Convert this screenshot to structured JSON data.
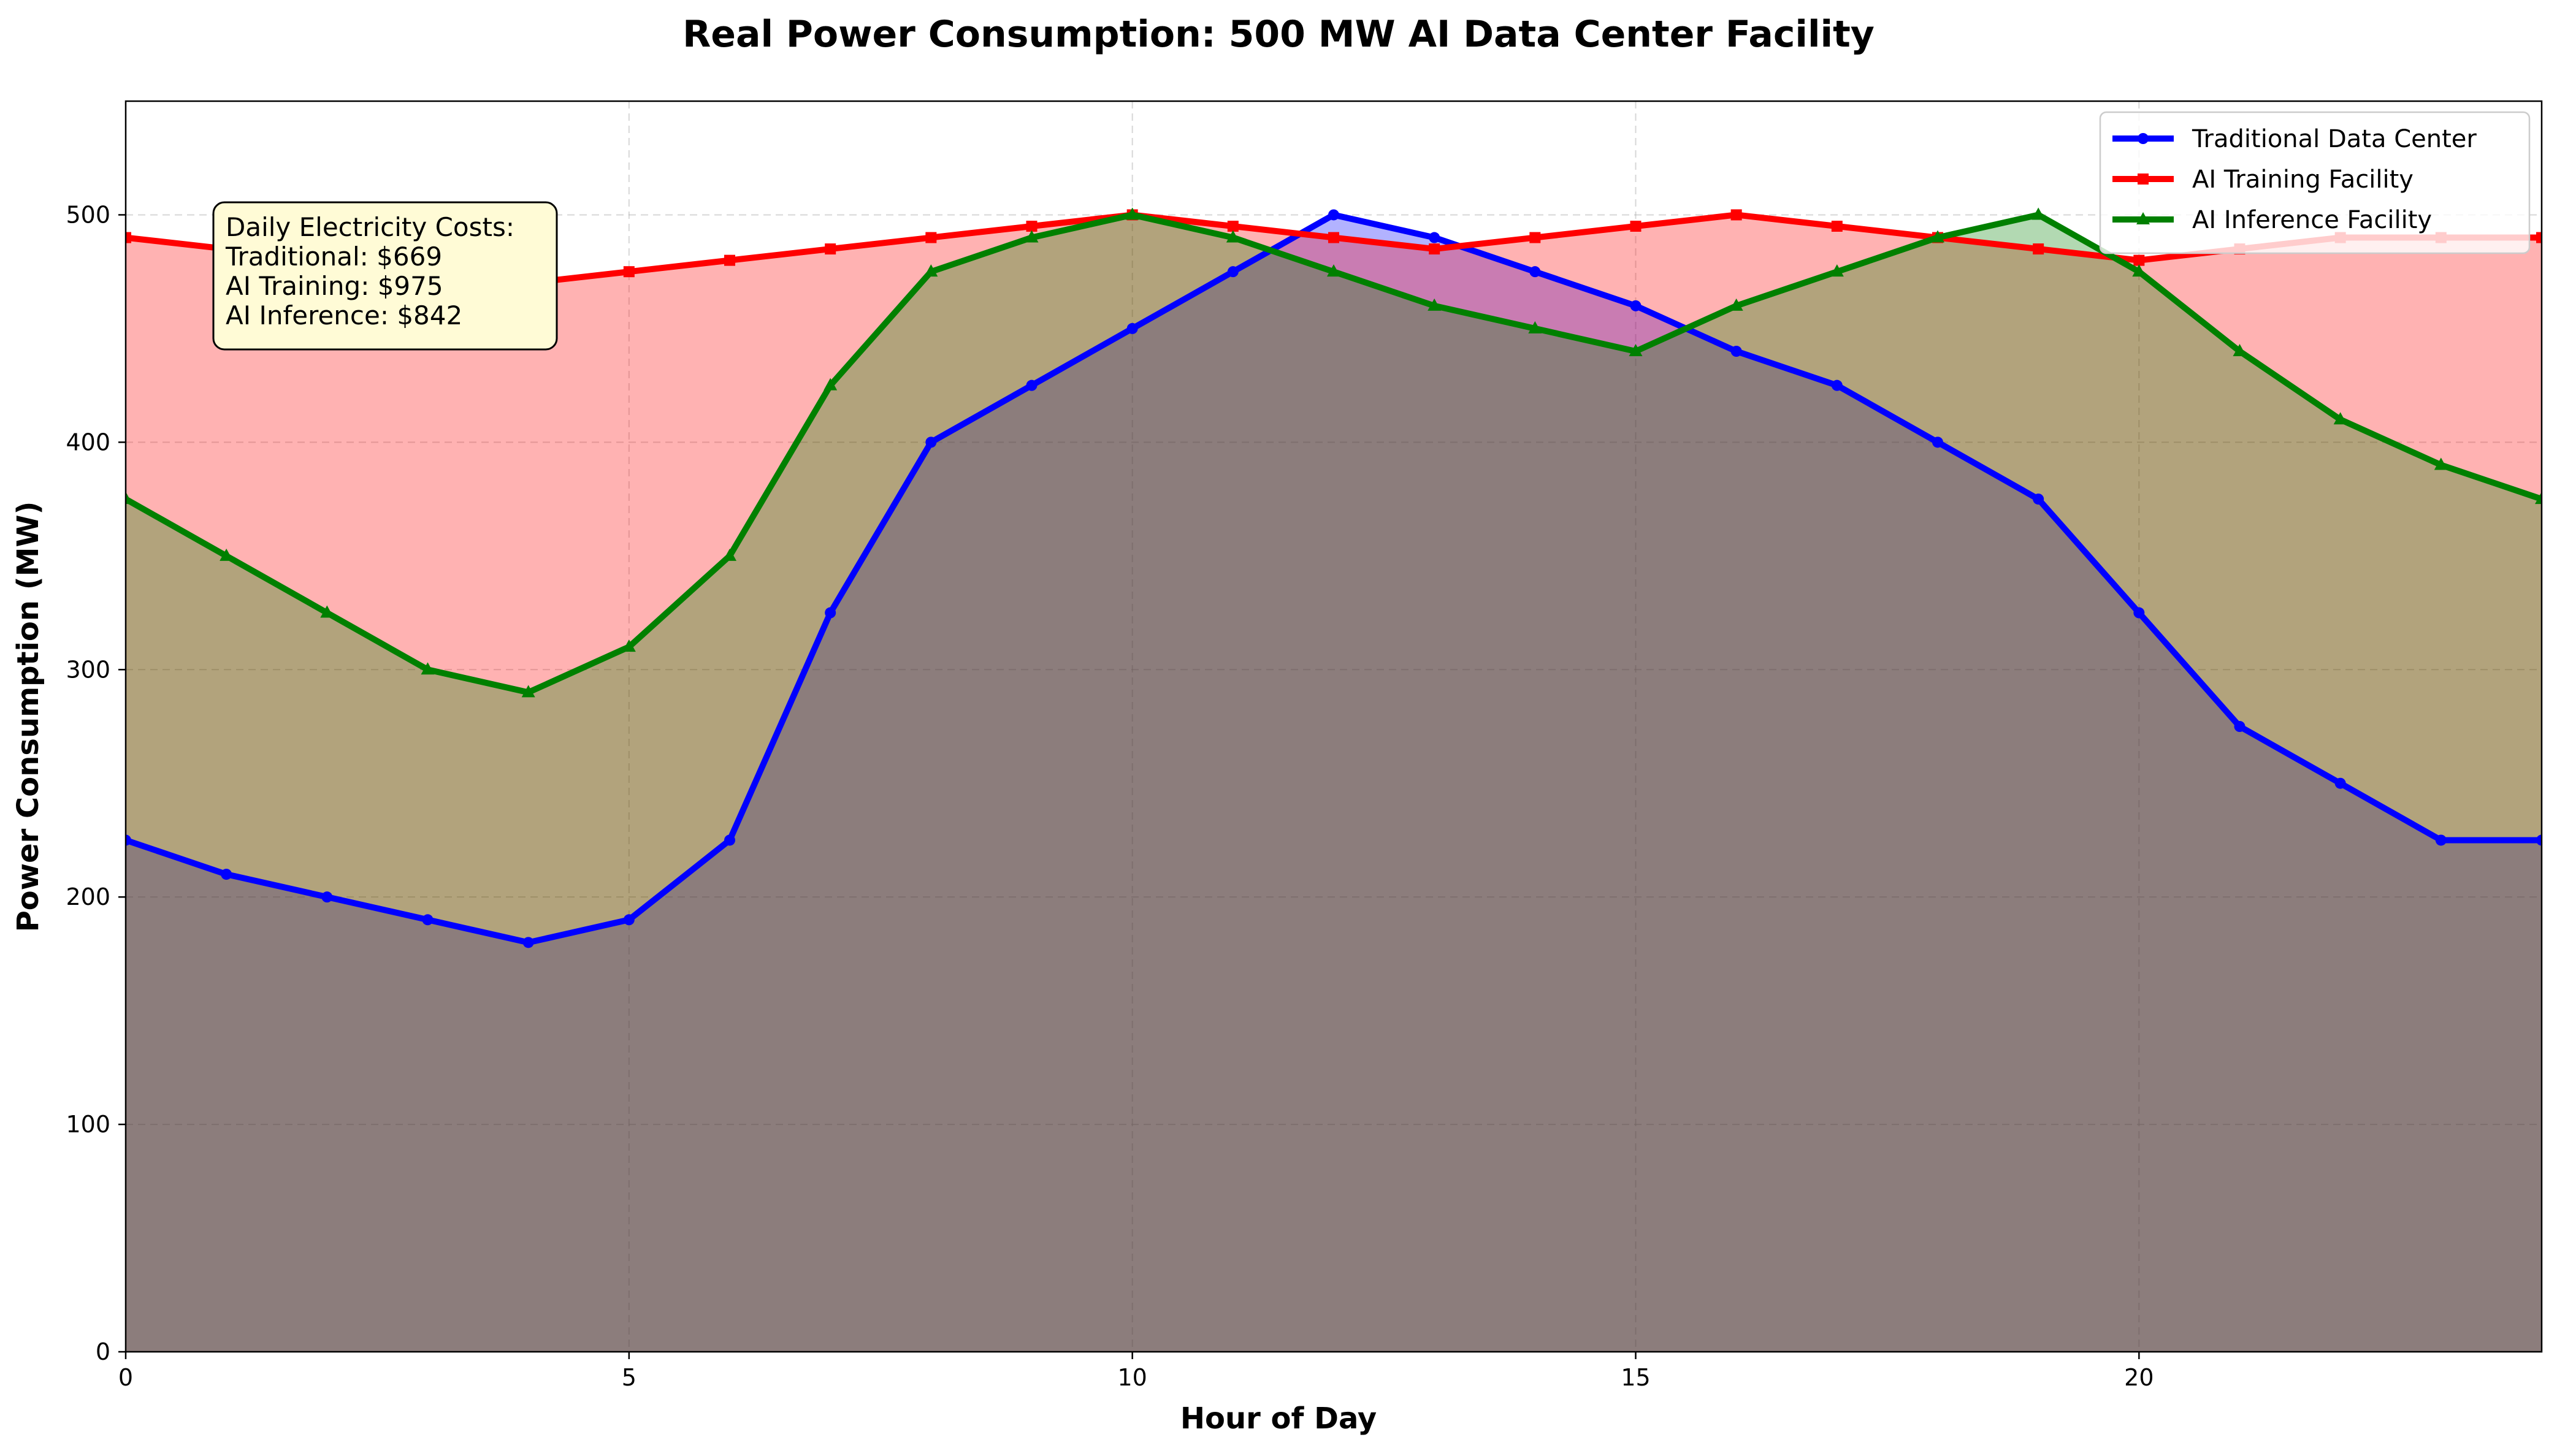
{
  "chart_data": {
    "type": "area",
    "title": "Real Power Consumption: 500 MW AI Data Center Facility",
    "xlabel": "Hour of Day",
    "ylabel": "Power Consumption (MW)",
    "xlim": [
      0,
      24
    ],
    "ylim": [
      0,
      550
    ],
    "x_ticks": [
      0,
      5,
      10,
      15,
      20
    ],
    "y_ticks": [
      0,
      100,
      200,
      300,
      400,
      500
    ],
    "grid": true,
    "legend_position": "top-right",
    "x": [
      0,
      1,
      2,
      3,
      4,
      5,
      6,
      7,
      8,
      9,
      10,
      11,
      12,
      13,
      14,
      15,
      16,
      17,
      18,
      19,
      20,
      21,
      22,
      23,
      24
    ],
    "series": [
      {
        "name": "Traditional Data Center",
        "color": "#0000ff",
        "fill": "#0000ff",
        "marker": "circle",
        "values": [
          225,
          210,
          200,
          190,
          180,
          190,
          225,
          325,
          400,
          425,
          450,
          475,
          500,
          490,
          475,
          460,
          440,
          425,
          400,
          375,
          325,
          275,
          250,
          225,
          225
        ]
      },
      {
        "name": "AI Training Facility",
        "color": "#ff0000",
        "fill": "#ff0000",
        "marker": "square",
        "values": [
          490,
          485,
          480,
          475,
          470,
          475,
          480,
          485,
          490,
          495,
          500,
          495,
          490,
          485,
          490,
          495,
          500,
          495,
          490,
          485,
          480,
          485,
          490,
          490,
          490
        ]
      },
      {
        "name": "AI Inference Facility",
        "color": "#008000",
        "fill": "#008000",
        "marker": "triangle",
        "values": [
          375,
          350,
          325,
          300,
          290,
          310,
          350,
          425,
          475,
          490,
          500,
          490,
          475,
          460,
          450,
          440,
          460,
          475,
          490,
          500,
          475,
          440,
          410,
          390,
          375
        ]
      }
    ],
    "annotation": {
      "lines": [
        "Daily Electricity Costs:",
        "Traditional: $669",
        "AI Training: $975",
        "AI Inference: $842"
      ],
      "background": "#fffbd6"
    }
  }
}
